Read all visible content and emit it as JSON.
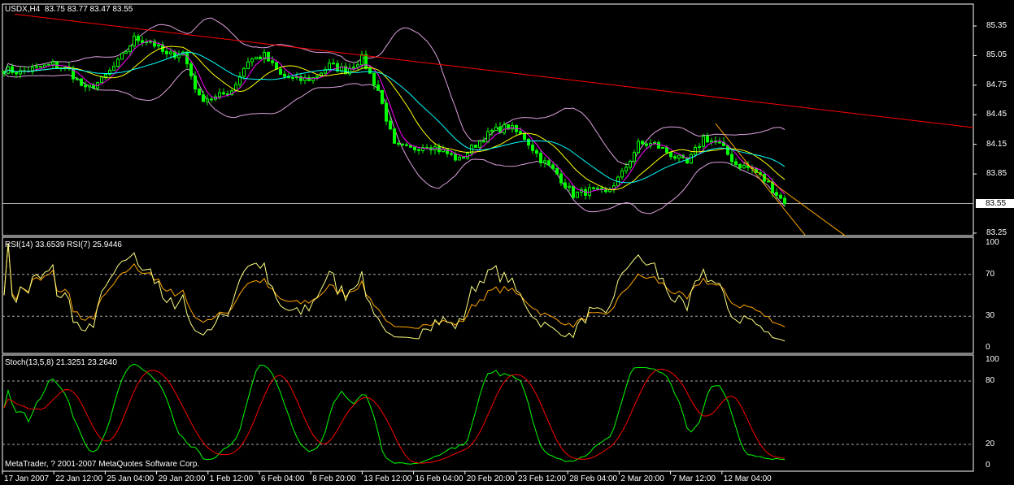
{
  "header": {
    "symbol": "USDX,H4",
    "ohlc": "83.75 83.77 83.47 83.55"
  },
  "rsi_header": "RSI(14) 33.6539  RSI(7) 25.9446",
  "stoch_header": "Stoch(13,5,8) 21.3251 23.2640",
  "copyright": "MetaTrader, ? 2001-2007 MetaQuotes Software Corp.",
  "current_price": "83.55",
  "colors": {
    "background": "#000000",
    "candle": "#00ff00",
    "ma_fast": "#ff00ff",
    "ma_mid": "#ffff00",
    "ma_slow": "#00ffff",
    "bollinger": "#dda0dd",
    "trendline": "#ff0000",
    "channel": "#ffa500",
    "rsi14": "#ffa500",
    "rsi7": "#ffff80",
    "stoch_main": "#00ff00",
    "stoch_signal": "#ff0000",
    "grid": "#ffffff"
  },
  "chart_data": [
    {
      "type": "candlestick",
      "symbol": "USDX",
      "timeframe": "H4",
      "y_ticks": [
        "85.35",
        "85.05",
        "84.75",
        "84.45",
        "84.15",
        "83.85",
        "83.55",
        "83.25"
      ],
      "ylim": [
        83.2,
        85.6
      ],
      "x_ticks": [
        "17 Jan 2007",
        "22 Jan 12:00",
        "25 Jan 04:00",
        "29 Jan 20:00",
        "1 Feb 12:00",
        "6 Feb 04:00",
        "8 Feb 20:00",
        "13 Feb 12:00",
        "16 Feb 04:00",
        "20 Feb 20:00",
        "23 Feb 12:00",
        "28 Feb 04:00",
        "2 Mar 20:00",
        "7 Mar 12:00",
        "12 Mar 04:00"
      ],
      "approx_close_every_4_bars": [
        84.91,
        84.88,
        84.92,
        84.96,
        84.9,
        84.7,
        84.8,
        84.98,
        85.22,
        85.2,
        85.05,
        85.08,
        84.62,
        84.62,
        84.7,
        85.0,
        85.05,
        84.85,
        84.8,
        84.82,
        84.95,
        84.9,
        85.02,
        84.7,
        84.13,
        84.1,
        84.15,
        84.08,
        83.99,
        84.15,
        84.28,
        84.33,
        84.22,
        84.0,
        83.85,
        83.64,
        83.68,
        83.65,
        83.85,
        84.15,
        84.15,
        84.05,
        83.95,
        84.22,
        84.15,
        83.95,
        83.9,
        83.75,
        83.55
      ],
      "indicators": [
        "MA fast",
        "MA mid",
        "MA slow",
        "Bollinger Bands(20,2)"
      ],
      "trendlines": [
        {
          "color": "trendline",
          "from": [
            2.6,
            85.47
          ],
          "to": [
            238.4,
            84.32
          ]
        },
        {
          "color": "channel",
          "from": [
            175,
            84.36
          ],
          "to": [
            197,
            83.23
          ]
        },
        {
          "color": "channel",
          "from": [
            182,
            83.97
          ],
          "to": [
            207,
            83.22
          ]
        }
      ],
      "last_close": 83.55
    },
    {
      "type": "line",
      "name": "RSI",
      "y_ticks": [
        "100",
        "70",
        "30",
        "0"
      ],
      "levels": [
        70,
        30
      ],
      "ylim": [
        0,
        100
      ],
      "series": [
        {
          "name": "RSI(14)",
          "last": 33.6539
        },
        {
          "name": "RSI(7)",
          "last": 25.9446
        }
      ]
    },
    {
      "type": "line",
      "name": "Stoch",
      "y_ticks": [
        "100",
        "80",
        "20",
        "0"
      ],
      "levels": [
        80,
        20
      ],
      "ylim": [
        0,
        100
      ],
      "series": [
        {
          "name": "Main",
          "last": 21.3251
        },
        {
          "name": "Signal",
          "last": 23.264
        }
      ]
    }
  ]
}
